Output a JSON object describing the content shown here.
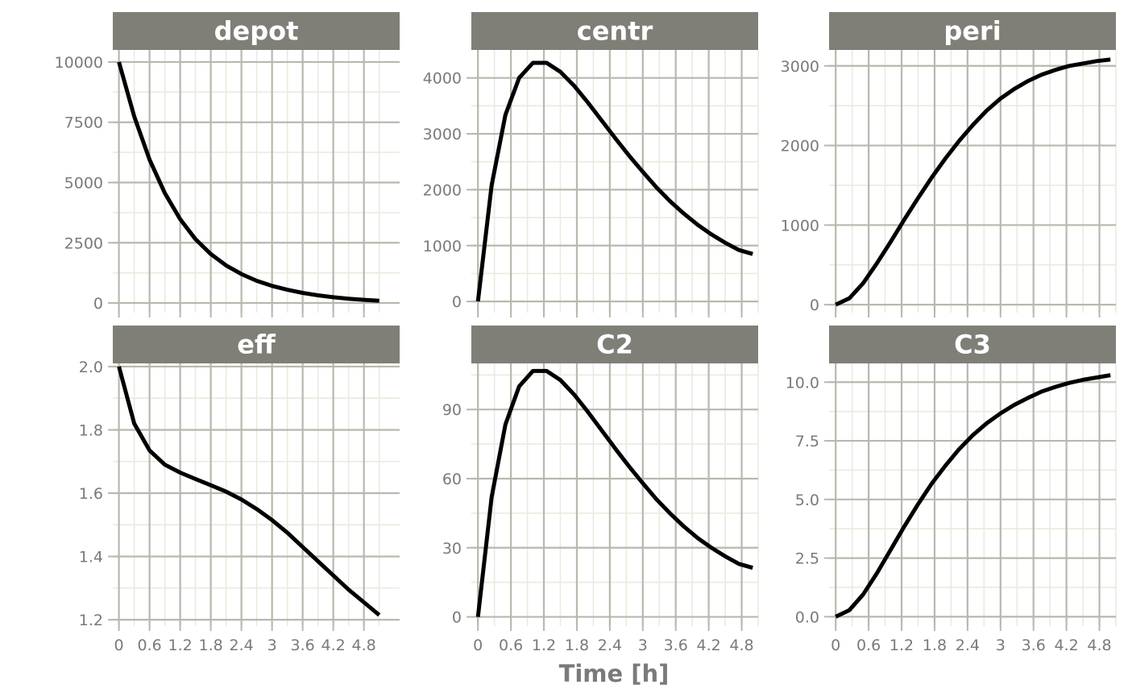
{
  "figure": {
    "xlabel": "Time [h]",
    "style": {
      "strip_bg": "#7f7f78",
      "strip_text": "#ffffff",
      "major_grid": "#b8b8ae",
      "minor_grid": "#e9ebdd",
      "line": "#000000",
      "tick_label": "#7a7a7a"
    }
  },
  "chart_data": [
    {
      "type": "line",
      "title": "depot",
      "xlabel": "Time [h]",
      "ylabel": "",
      "xlim": [
        -0.12,
        5.5
      ],
      "ylim": [
        -400,
        10500
      ],
      "xticks": [
        0,
        0.6,
        1.2,
        1.8,
        2.4,
        3,
        3.6,
        4.2,
        4.8
      ],
      "xtick_labels": [
        "0",
        "0.6",
        "1.2",
        "1.8",
        "2.4",
        "3",
        "3.6",
        "4.2",
        "4.8"
      ],
      "yticks": [
        0,
        2500,
        5000,
        7500,
        10000
      ],
      "ytick_labels": [
        "0",
        "2500",
        "5000",
        "7500",
        "10000"
      ],
      "x": [
        0,
        0.3,
        0.6,
        0.9,
        1.2,
        1.5,
        1.8,
        2.1,
        2.4,
        2.7,
        3.0,
        3.3,
        3.6,
        3.9,
        4.2,
        4.5,
        4.8,
        5.1
      ],
      "y": [
        10000,
        7740,
        5950,
        4560,
        3480,
        2650,
        2030,
        1560,
        1200,
        920,
        710,
        550,
        420,
        320,
        240,
        180,
        130,
        95
      ]
    },
    {
      "type": "line",
      "title": "centr",
      "xlabel": "Time [h]",
      "ylabel": "",
      "xlim": [
        -0.12,
        5.1
      ],
      "ylim": [
        -200,
        4500
      ],
      "xticks": [
        0,
        0.6,
        1.2,
        1.8,
        2.4,
        3,
        3.6,
        4.2,
        4.8
      ],
      "xtick_labels": [
        "0",
        "0.6",
        "1.2",
        "1.8",
        "2.4",
        "3",
        "3.6",
        "4.2",
        "4.8"
      ],
      "yticks": [
        0,
        1000,
        2000,
        3000,
        4000
      ],
      "ytick_labels": [
        "0",
        "1000",
        "2000",
        "3000",
        "4000"
      ],
      "x": [
        0,
        0.25,
        0.5,
        0.75,
        1.0,
        1.25,
        1.5,
        1.75,
        2.0,
        2.25,
        2.5,
        2.75,
        3.0,
        3.25,
        3.5,
        3.75,
        4.0,
        4.25,
        4.5,
        4.75,
        5.0
      ],
      "y": [
        0,
        2080,
        3340,
        4000,
        4270,
        4270,
        4110,
        3860,
        3560,
        3240,
        2920,
        2610,
        2320,
        2040,
        1790,
        1570,
        1370,
        1200,
        1050,
        920,
        850
      ]
    },
    {
      "type": "line",
      "title": "peri",
      "xlabel": "Time [h]",
      "ylabel": "",
      "xlim": [
        -0.12,
        5.1
      ],
      "ylim": [
        -100,
        3200
      ],
      "xticks": [
        0,
        0.6,
        1.2,
        1.8,
        2.4,
        3,
        3.6,
        4.2,
        4.8
      ],
      "xtick_labels": [
        "0",
        "0.6",
        "1.2",
        "1.8",
        "2.4",
        "3",
        "3.6",
        "4.2",
        "4.8"
      ],
      "yticks": [
        0,
        1000,
        2000,
        3000
      ],
      "ytick_labels": [
        "0",
        "1000",
        "2000",
        "3000"
      ],
      "x": [
        0,
        0.25,
        0.5,
        0.75,
        1.0,
        1.25,
        1.5,
        1.75,
        2.0,
        2.25,
        2.5,
        2.75,
        3.0,
        3.25,
        3.5,
        3.75,
        4.0,
        4.25,
        4.5,
        4.75,
        5.0
      ],
      "y": [
        0,
        80,
        270,
        520,
        790,
        1070,
        1340,
        1600,
        1840,
        2060,
        2260,
        2440,
        2590,
        2710,
        2810,
        2890,
        2950,
        3000,
        3030,
        3060,
        3080
      ]
    },
    {
      "type": "line",
      "title": "eff",
      "xlabel": "Time [h]",
      "ylabel": "",
      "xlim": [
        -0.12,
        5.5
      ],
      "ylim": [
        1.18,
        2.01
      ],
      "xticks": [
        0,
        0.6,
        1.2,
        1.8,
        2.4,
        3,
        3.6,
        4.2,
        4.8
      ],
      "xtick_labels": [
        "0",
        "0.6",
        "1.2",
        "1.8",
        "2.4",
        "3",
        "3.6",
        "4.2",
        "4.8"
      ],
      "yticks": [
        1.2,
        1.4,
        1.6,
        1.8,
        2.0
      ],
      "ytick_labels": [
        "1.2",
        "1.4",
        "1.6",
        "1.8",
        "2.0"
      ],
      "x": [
        0,
        0.3,
        0.6,
        0.9,
        1.2,
        1.5,
        1.8,
        2.1,
        2.4,
        2.7,
        3.0,
        3.3,
        3.6,
        3.9,
        4.2,
        4.5,
        4.8,
        5.1
      ],
      "y": [
        2.0,
        1.82,
        1.735,
        1.69,
        1.665,
        1.645,
        1.625,
        1.605,
        1.58,
        1.55,
        1.515,
        1.475,
        1.43,
        1.385,
        1.34,
        1.295,
        1.255,
        1.215
      ]
    },
    {
      "type": "line",
      "title": "C2",
      "xlabel": "Time [h]",
      "ylabel": "",
      "xlim": [
        -0.12,
        5.1
      ],
      "ylim": [
        -4,
        110
      ],
      "xticks": [
        0,
        0.6,
        1.2,
        1.8,
        2.4,
        3,
        3.6,
        4.2,
        4.8
      ],
      "xtick_labels": [
        "0",
        "0.6",
        "1.2",
        "1.8",
        "2.4",
        "3",
        "3.6",
        "4.2",
        "4.8"
      ],
      "yticks": [
        0,
        30,
        60,
        90
      ],
      "ytick_labels": [
        "0",
        "30",
        "60",
        "90"
      ],
      "x": [
        0,
        0.25,
        0.5,
        0.75,
        1.0,
        1.25,
        1.5,
        1.75,
        2.0,
        2.25,
        2.5,
        2.75,
        3.0,
        3.25,
        3.5,
        3.75,
        4.0,
        4.25,
        4.5,
        4.75,
        5.0
      ],
      "y": [
        0,
        52,
        83.5,
        100,
        106.7,
        106.7,
        102.8,
        96.5,
        89,
        81,
        73,
        65.3,
        58,
        51,
        44.8,
        39.2,
        34.2,
        30,
        26.3,
        23,
        21.3
      ]
    },
    {
      "type": "line",
      "title": "C3",
      "xlabel": "Time [h]",
      "ylabel": "",
      "xlim": [
        -0.12,
        5.1
      ],
      "ylim": [
        -0.4,
        10.8
      ],
      "xticks": [
        0,
        0.6,
        1.2,
        1.8,
        2.4,
        3,
        3.6,
        4.2,
        4.8
      ],
      "xtick_labels": [
        "0",
        "0.6",
        "1.2",
        "1.8",
        "2.4",
        "3",
        "3.6",
        "4.2",
        "4.8"
      ],
      "yticks": [
        0.0,
        2.5,
        5.0,
        7.5,
        10.0
      ],
      "ytick_labels": [
        "0.0",
        "2.5",
        "5.0",
        "7.5",
        "10.0"
      ],
      "x": [
        0,
        0.25,
        0.5,
        0.75,
        1.0,
        1.25,
        1.5,
        1.75,
        2.0,
        2.25,
        2.5,
        2.75,
        3.0,
        3.25,
        3.5,
        3.75,
        4.0,
        4.25,
        4.5,
        4.75,
        5.0
      ],
      "y": [
        0,
        0.28,
        0.95,
        1.85,
        2.85,
        3.85,
        4.8,
        5.68,
        6.45,
        7.15,
        7.75,
        8.25,
        8.67,
        9.03,
        9.33,
        9.6,
        9.8,
        9.97,
        10.1,
        10.2,
        10.3
      ]
    }
  ]
}
